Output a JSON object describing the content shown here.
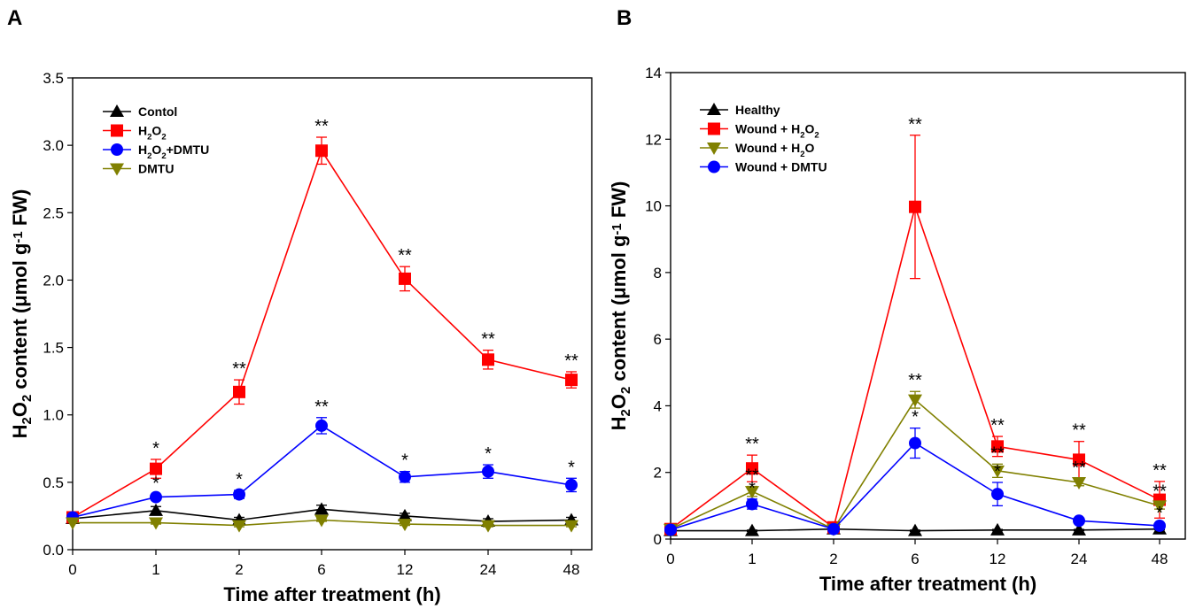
{
  "chart_data": [
    {
      "panel": "A",
      "type": "line",
      "title": "",
      "xlabel": "Time after treatment (h)",
      "ylabel_parts": [
        "H",
        "2",
        "O",
        "2",
        " content (μmol g",
        "-1",
        " FW)"
      ],
      "categories": [
        "0",
        "1",
        "2",
        "6",
        "12",
        "24",
        "48"
      ],
      "yticks": [
        "0.0",
        "0.5",
        "1.0",
        "1.5",
        "2.0",
        "2.5",
        "3.0",
        "3.5"
      ],
      "ylim": [
        0,
        3.5
      ],
      "legend_position": "top-left",
      "series": [
        {
          "name": "Contol",
          "name_parts": [
            [
              "Contol",
              "n"
            ]
          ],
          "marker": "triangle-up",
          "color": "#000000",
          "values": [
            0.23,
            0.29,
            0.22,
            0.3,
            0.25,
            0.21,
            0.22
          ],
          "errors": [
            0,
            0.03,
            0.02,
            0.03,
            0.02,
            0.02,
            0.02
          ]
        },
        {
          "name": "H2O2",
          "name_parts": [
            [
              "H",
              "n"
            ],
            [
              "2",
              "s"
            ],
            [
              "O",
              "n"
            ],
            [
              "2",
              "s"
            ]
          ],
          "marker": "square",
          "color": "#ff0000",
          "values": [
            0.24,
            0.6,
            1.17,
            2.96,
            2.01,
            1.41,
            1.26
          ],
          "errors": [
            0,
            0.07,
            0.09,
            0.1,
            0.09,
            0.07,
            0.06
          ],
          "significance": [
            "",
            "*",
            "**",
            "**",
            "**",
            "**",
            "**"
          ]
        },
        {
          "name": "H2O2+DMTU",
          "name_parts": [
            [
              "H",
              "n"
            ],
            [
              "2",
              "s"
            ],
            [
              "O",
              "n"
            ],
            [
              "2",
              "s"
            ],
            [
              "+DMTU",
              "n"
            ]
          ],
          "marker": "circle",
          "color": "#0000ff",
          "values": [
            0.24,
            0.39,
            0.41,
            0.92,
            0.54,
            0.58,
            0.48
          ],
          "errors": [
            0,
            0.02,
            0.03,
            0.06,
            0.04,
            0.05,
            0.05
          ],
          "significance": [
            "",
            "*",
            "*",
            "**",
            "*",
            "*",
            "*"
          ]
        },
        {
          "name": "DMTU",
          "name_parts": [
            [
              "DMTU",
              "n"
            ]
          ],
          "marker": "triangle-down",
          "color": "#808000",
          "values": [
            0.2,
            0.2,
            0.18,
            0.22,
            0.19,
            0.18,
            0.18
          ],
          "errors": [
            0,
            0.01,
            0.01,
            0.01,
            0.01,
            0.01,
            0.01
          ]
        }
      ]
    },
    {
      "panel": "B",
      "type": "line",
      "title": "",
      "xlabel": "Time after treatment (h)",
      "ylabel_parts": [
        "H",
        "2",
        "O",
        "2",
        " content (μmol g",
        "-1",
        " FW)"
      ],
      "categories": [
        "0",
        "1",
        "2",
        "6",
        "12",
        "24",
        "48"
      ],
      "yticks": [
        "0",
        "2",
        "4",
        "6",
        "8",
        "10",
        "12",
        "14"
      ],
      "ylim": [
        0,
        14
      ],
      "legend_position": "top-left",
      "series": [
        {
          "name": "Healthy",
          "name_parts": [
            [
              "Healthy",
              "n"
            ]
          ],
          "marker": "triangle-up",
          "color": "#000000",
          "values": [
            0.25,
            0.25,
            0.3,
            0.25,
            0.27,
            0.27,
            0.3
          ],
          "errors": [
            0,
            0.02,
            0.02,
            0.02,
            0.02,
            0.02,
            0.02
          ]
        },
        {
          "name": "Wound + H2O2",
          "name_parts": [
            [
              "Wound + H",
              "n"
            ],
            [
              "2",
              "s"
            ],
            [
              "O",
              "n"
            ],
            [
              "2",
              "s"
            ]
          ],
          "marker": "square",
          "color": "#ff0000",
          "values": [
            0.3,
            2.12,
            0.35,
            9.97,
            2.78,
            2.38,
            1.18
          ],
          "errors": [
            0,
            0.4,
            0.05,
            2.15,
            0.3,
            0.55,
            0.55
          ],
          "significance": [
            "",
            "**",
            "",
            "**",
            "**",
            "**",
            "**"
          ]
        },
        {
          "name": "Wound + H2O",
          "name_parts": [
            [
              "Wound + H",
              "n"
            ],
            [
              "2",
              "s"
            ],
            [
              "O",
              "n"
            ]
          ],
          "marker": "triangle-down",
          "color": "#808000",
          "values": [
            0.3,
            1.43,
            0.3,
            4.18,
            2.05,
            1.7,
            1.0
          ],
          "errors": [
            0,
            0.15,
            0.05,
            0.25,
            0.2,
            0.1,
            0.1
          ],
          "significance": [
            "",
            "**",
            "",
            "**",
            "**",
            "**",
            "**"
          ]
        },
        {
          "name": "Wound + DMTU",
          "name_parts": [
            [
              "Wound + DMTU",
              "n"
            ]
          ],
          "marker": "circle",
          "color": "#0000ff",
          "values": [
            0.28,
            1.05,
            0.3,
            2.88,
            1.35,
            0.55,
            0.4
          ],
          "errors": [
            0,
            0.15,
            0.05,
            0.45,
            0.35,
            0.05,
            0.05
          ],
          "significance": [
            "",
            "*",
            "",
            "*",
            "*",
            "",
            "*"
          ]
        }
      ]
    }
  ]
}
